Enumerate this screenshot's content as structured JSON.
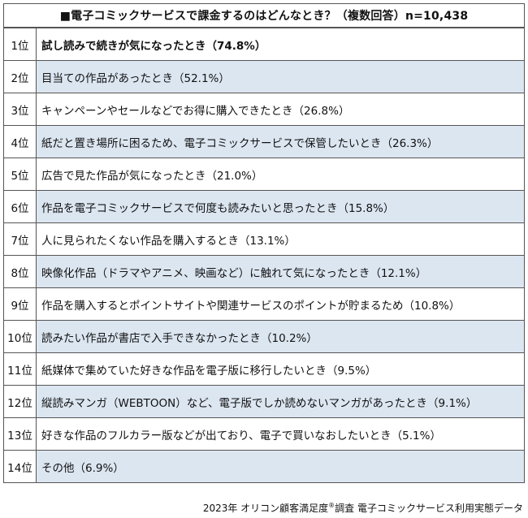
{
  "title": "■電子コミックサービスで課金するのはどんなとき？（複数回答）n=10,438",
  "rows": [
    {
      "rank": "1位",
      "text": "試し読みで続きが気になったとき（74.8%）"
    },
    {
      "rank": "2位",
      "text": "目当ての作品があったとき（52.1%）"
    },
    {
      "rank": "3位",
      "text": "キャンペーンやセールなどでお得に購入できたとき（26.8%）"
    },
    {
      "rank": "4位",
      "text": "紙だと置き場所に困るため、電子コミックサービスで保管したいとき（26.3%）"
    },
    {
      "rank": "5位",
      "text": "広告で見た作品が気になったとき（21.0%）"
    },
    {
      "rank": "6位",
      "text": "作品を電子コミックサービスで何度も読みたいと思ったとき（15.8%）"
    },
    {
      "rank": "7位",
      "text": "人に見られたくない作品を購入するとき（13.1%）"
    },
    {
      "rank": "8位",
      "text": "映像化作品（ドラマやアニメ、映画など）に触れて気になったとき（12.1%）"
    },
    {
      "rank": "9位",
      "text": "作品を購入するとポイントサイトや関連サービスのポイントが貯まるため（10.8%）"
    },
    {
      "rank": "10位",
      "text": "読みたい作品が書店で入手できなかったとき（10.2%）"
    },
    {
      "rank": "11位",
      "text": "紙媒体で集めていた好きな作品を電子版に移行したいとき（9.5%）"
    },
    {
      "rank": "12位",
      "text": "縦読みマンガ（WEBTOON）など、電子版でしか読めないマンガがあったとき（9.1%）"
    },
    {
      "rank": "13位",
      "text": "好きな作品のフルカラー版などが出ており、電子で買いなおしたいとき（5.1%）"
    },
    {
      "rank": "14位",
      "text": "その他（6.9%）"
    }
  ],
  "footer": {
    "before": "2023年 オリコン顧客満足度",
    "mark": "®",
    "after": "調査 電子コミックサービス利用実態データ"
  }
}
